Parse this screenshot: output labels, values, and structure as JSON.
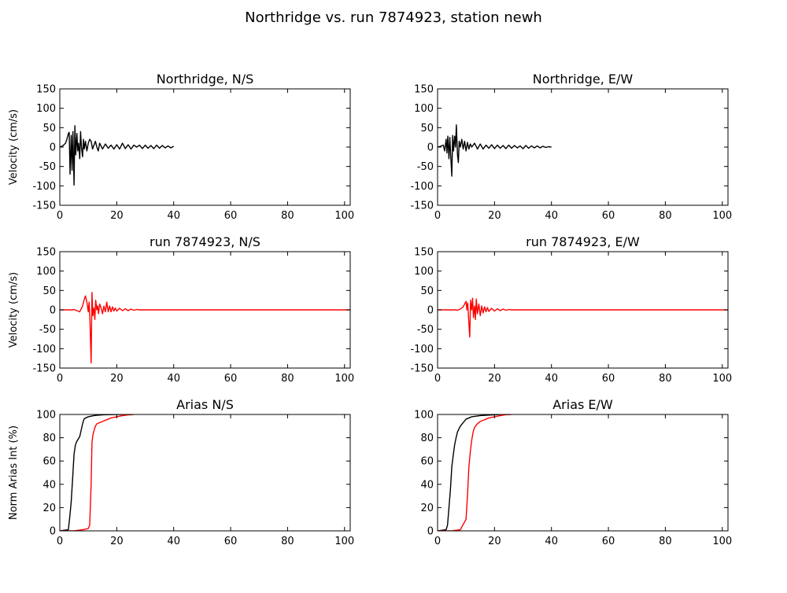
{
  "figure": {
    "title": "Northridge vs. run 7874923, station newh"
  },
  "colors": {
    "observed": "#000000",
    "simulated": "#ff0000",
    "axes": "#000000",
    "background": "#ffffff"
  },
  "chart_data": [
    {
      "type": "line",
      "title": "Northridge, N/S",
      "xlabel": "",
      "ylabel": "Velocity (cm/s)",
      "xlim": [
        0,
        102
      ],
      "ylim": [
        -150,
        150
      ],
      "xticks": [
        0,
        20,
        40,
        60,
        80,
        100
      ],
      "yticks": [
        -150,
        -100,
        -50,
        0,
        50,
        100,
        150
      ],
      "grid": false,
      "series": [
        {
          "color": "#000000",
          "x": [
            0,
            1,
            2,
            2.5,
            3,
            3.3,
            3.6,
            4,
            4.3,
            4.6,
            5,
            5.3,
            5.6,
            6,
            6.3,
            6.6,
            7,
            7.3,
            7.6,
            8,
            8.3,
            8.6,
            9,
            9.5,
            10,
            10.5,
            11,
            11.5,
            12,
            12.5,
            13,
            13.5,
            14,
            15,
            16,
            17,
            18,
            19,
            20,
            21,
            22,
            23,
            24,
            25,
            26,
            27,
            28,
            29,
            30,
            31,
            32,
            33,
            34,
            35,
            36,
            37,
            38,
            39,
            40
          ],
          "y": [
            0,
            3,
            10,
            20,
            35,
            38,
            -70,
            30,
            -60,
            40,
            -98,
            55,
            -20,
            35,
            -10,
            10,
            -30,
            40,
            0,
            -25,
            20,
            -5,
            15,
            -10,
            10,
            20,
            15,
            -5,
            5,
            15,
            0,
            -10,
            10,
            -5,
            8,
            -3,
            5,
            -5,
            6,
            -5,
            10,
            -4,
            6,
            -5,
            5,
            0,
            5,
            -4,
            5,
            -3,
            4,
            -4,
            5,
            -3,
            4,
            -2,
            3,
            -2,
            2
          ]
        }
      ]
    },
    {
      "type": "line",
      "title": "Northridge, E/W",
      "xlabel": "",
      "ylabel": "",
      "xlim": [
        0,
        102
      ],
      "ylim": [
        -150,
        150
      ],
      "xticks": [
        0,
        20,
        40,
        60,
        80,
        100
      ],
      "yticks": [
        -150,
        -100,
        -50,
        0,
        50,
        100,
        150
      ],
      "grid": false,
      "series": [
        {
          "color": "#000000",
          "x": [
            0,
            1,
            2,
            2.5,
            3,
            3.3,
            3.6,
            4,
            4.3,
            4.6,
            5,
            5.3,
            5.6,
            6,
            6.3,
            6.6,
            7,
            7.3,
            7.6,
            8,
            8.5,
            9,
            9.5,
            10,
            10.5,
            11,
            11.5,
            12,
            13,
            14,
            15,
            16,
            17,
            18,
            19,
            20,
            21,
            22,
            23,
            24,
            25,
            26,
            27,
            28,
            29,
            30,
            31,
            32,
            33,
            34,
            35,
            36,
            37,
            38,
            39,
            40
          ],
          "y": [
            0,
            2,
            5,
            -10,
            20,
            -15,
            28,
            -30,
            25,
            -20,
            -75,
            30,
            -10,
            28,
            0,
            57,
            -20,
            -40,
            15,
            0,
            20,
            -5,
            15,
            -10,
            12,
            -5,
            8,
            0,
            10,
            -5,
            8,
            -5,
            5,
            -3,
            6,
            -4,
            5,
            -3,
            4,
            -4,
            5,
            -3,
            4,
            -2,
            3,
            -4,
            4,
            -3,
            3,
            -2,
            3,
            -2,
            2,
            -1,
            1,
            0
          ]
        }
      ]
    },
    {
      "type": "line",
      "title": "run 7874923, N/S",
      "xlabel": "",
      "ylabel": "Velocity (cm/s)",
      "xlim": [
        0,
        102
      ],
      "ylim": [
        -150,
        150
      ],
      "xticks": [
        0,
        20,
        40,
        60,
        80,
        100
      ],
      "yticks": [
        -150,
        -100,
        -50,
        0,
        50,
        100,
        150
      ],
      "grid": false,
      "series": [
        {
          "color": "#ff0000",
          "x": [
            0,
            2,
            4,
            5,
            6,
            7,
            8,
            8.5,
            9,
            9.5,
            10,
            10.3,
            10.6,
            11,
            11.3,
            11.6,
            12,
            12.3,
            12.6,
            13,
            13.3,
            13.6,
            14,
            14.5,
            15,
            15.5,
            16,
            16.5,
            17,
            17.5,
            18,
            18.5,
            19,
            19.5,
            20,
            21,
            22,
            23,
            24,
            25,
            26,
            27,
            28,
            30,
            40,
            60,
            80,
            100,
            102
          ],
          "y": [
            0,
            0,
            0,
            1,
            -2,
            -5,
            10,
            25,
            36,
            20,
            -5,
            20,
            -30,
            -137,
            45,
            -15,
            5,
            -25,
            25,
            0,
            10,
            -10,
            15,
            5,
            -10,
            10,
            -5,
            20,
            -5,
            10,
            -5,
            8,
            -3,
            5,
            -3,
            4,
            -2,
            3,
            -2,
            2,
            -1,
            1,
            0,
            0,
            0,
            0,
            0,
            0,
            0
          ]
        }
      ]
    },
    {
      "type": "line",
      "title": "run 7874923, E/W",
      "xlabel": "",
      "ylabel": "",
      "xlim": [
        0,
        102
      ],
      "ylim": [
        -150,
        150
      ],
      "xticks": [
        0,
        20,
        40,
        60,
        80,
        100
      ],
      "yticks": [
        -150,
        -100,
        -50,
        0,
        50,
        100,
        150
      ],
      "grid": false,
      "series": [
        {
          "color": "#ff0000",
          "x": [
            0,
            2,
            4,
            6,
            7,
            8,
            9,
            9.5,
            10,
            10.3,
            10.6,
            11,
            11.3,
            11.6,
            12,
            12.3,
            12.6,
            13,
            13.3,
            13.6,
            14,
            14.5,
            15,
            15.5,
            16,
            16.5,
            17,
            17.5,
            18,
            19,
            20,
            21,
            22,
            23,
            24,
            25,
            26,
            28,
            30,
            40,
            60,
            80,
            100,
            102
          ],
          "y": [
            0,
            0,
            0,
            0,
            -1,
            2,
            8,
            15,
            22,
            0,
            18,
            -35,
            -70,
            25,
            0,
            30,
            -20,
            10,
            -25,
            28,
            -10,
            15,
            -15,
            10,
            -8,
            8,
            -5,
            6,
            -4,
            4,
            -3,
            3,
            -2,
            2,
            -1,
            1,
            0,
            0,
            0,
            0,
            0,
            0,
            0,
            0
          ]
        }
      ]
    },
    {
      "type": "line",
      "title": "Arias N/S",
      "xlabel": "",
      "ylabel": "Norm Arias Int (%)",
      "xlim": [
        0,
        102
      ],
      "ylim": [
        0,
        100
      ],
      "xticks": [
        0,
        20,
        40,
        60,
        80,
        100
      ],
      "yticks": [
        0,
        20,
        40,
        60,
        80,
        100
      ],
      "grid": false,
      "series": [
        {
          "color": "#000000",
          "x": [
            0,
            3,
            3.5,
            4,
            4.5,
            5,
            5.5,
            6,
            7,
            8,
            8.5,
            9,
            10,
            12,
            14,
            16,
            20,
            24
          ],
          "y": [
            0,
            1,
            12,
            25,
            45,
            66,
            74,
            77,
            81,
            92,
            96,
            97,
            98,
            99,
            99.5,
            99.8,
            100,
            100
          ]
        },
        {
          "color": "#ff0000",
          "x": [
            0,
            5,
            8,
            10,
            10.5,
            11,
            11.3,
            11.6,
            12,
            12.5,
            13,
            14,
            15,
            16,
            17,
            18,
            20,
            22,
            24,
            26
          ],
          "y": [
            0,
            0,
            1,
            2,
            5,
            40,
            76,
            82,
            86,
            90,
            92,
            93,
            94,
            95,
            96,
            97,
            98,
            99,
            99.6,
            100
          ]
        }
      ]
    },
    {
      "type": "line",
      "title": "Arias E/W",
      "xlabel": "",
      "ylabel": "",
      "xlim": [
        0,
        102
      ],
      "ylim": [
        0,
        100
      ],
      "xticks": [
        0,
        20,
        40,
        60,
        80,
        100
      ],
      "yticks": [
        0,
        20,
        40,
        60,
        80,
        100
      ],
      "grid": false,
      "series": [
        {
          "color": "#000000",
          "x": [
            0,
            3,
            3.5,
            4,
            4.5,
            5,
            5.5,
            6,
            6.5,
            7,
            8,
            9,
            10,
            12,
            15,
            18,
            22,
            25
          ],
          "y": [
            0,
            1,
            5,
            20,
            35,
            55,
            65,
            74,
            80,
            85,
            90,
            93,
            96,
            98,
            99,
            99.5,
            100,
            100
          ]
        },
        {
          "color": "#ff0000",
          "x": [
            0,
            5,
            8,
            10,
            10.5,
            11,
            11.5,
            12,
            12.5,
            13,
            14,
            15,
            16,
            18,
            20,
            22,
            24,
            26
          ],
          "y": [
            0,
            0,
            1,
            10,
            30,
            55,
            68,
            78,
            85,
            89,
            92,
            94,
            95,
            97,
            98,
            99,
            99.8,
            100
          ]
        }
      ]
    }
  ]
}
